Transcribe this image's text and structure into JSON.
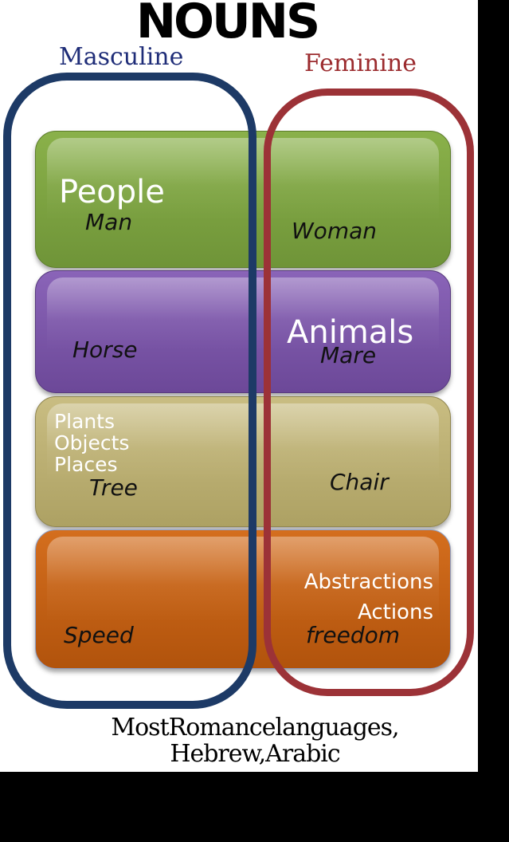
{
  "title": "NOUNS",
  "columns": {
    "masculine": "Masculine",
    "feminine": "Feminine"
  },
  "colors": {
    "masculine": "#1d3a66",
    "feminine": "#9c3237",
    "people": "#7ba140",
    "animals": "#7a55a8",
    "plants": "#bbb072",
    "abstractions": "#c26014"
  },
  "categories": {
    "people": "People",
    "animals": "Animals",
    "plants": [
      "Plants",
      "Objects",
      "Places"
    ],
    "abstractions": [
      "Abstractions",
      "Actions"
    ]
  },
  "examples": {
    "man": "Man",
    "woman": "Woman",
    "horse": "Horse",
    "mare": "Mare",
    "tree": "Tree",
    "chair": "Chair",
    "speed": "Speed",
    "freedom": "freedom"
  },
  "footer": [
    "MostRomancelanguages,",
    "Hebrew,Arabic"
  ]
}
